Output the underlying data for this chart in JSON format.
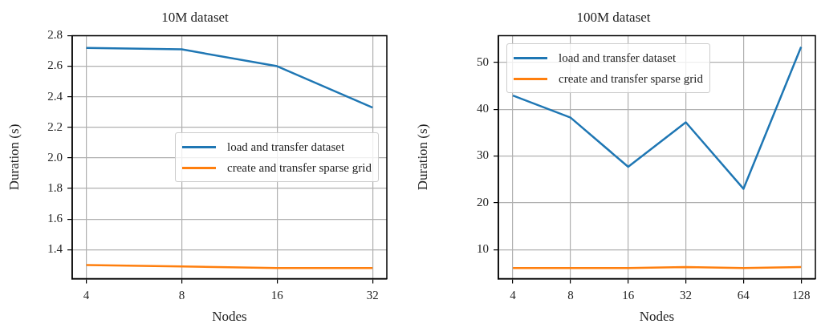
{
  "chart_data": [
    {
      "type": "line",
      "title": "10M dataset",
      "xlabel": "Nodes",
      "ylabel": "Duration (s)",
      "x": [
        4,
        8,
        16,
        32
      ],
      "log": "x",
      "xlim": [
        3.61,
        35.5
      ],
      "xticks": [
        4,
        8,
        16,
        32
      ],
      "ylim": [
        1.21,
        2.8
      ],
      "yticks": [
        1.4,
        1.6,
        1.8,
        {
          "value": 2,
          "label": "2.0"
        },
        2.2,
        2.4,
        2.6,
        2.8
      ],
      "grid": true,
      "legend": "right",
      "marker": "none",
      "line_style": "solid",
      "series": [
        {
          "name": "load and transfer dataset",
          "color": "#1f77b4",
          "values": [
            2.72,
            2.71,
            2.6,
            2.33
          ]
        },
        {
          "name": "create and transfer sparse grid",
          "color": "#ff7f0e",
          "values": [
            1.3,
            1.29,
            1.28,
            1.28
          ]
        }
      ]
    },
    {
      "type": "line",
      "title": "100M dataset",
      "xlabel": "Nodes",
      "ylabel": "Duration (s)",
      "x": [
        4,
        8,
        16,
        32,
        64,
        128
      ],
      "log": "x",
      "xlim": [
        3.36,
        152
      ],
      "xticks": [
        4,
        8,
        16,
        32,
        64,
        128
      ],
      "ylim": [
        3.8,
        55.7
      ],
      "yticks": [
        10,
        20,
        30,
        40,
        50
      ],
      "grid": true,
      "legend": "top left",
      "marker": "none",
      "line_style": "solid",
      "series": [
        {
          "name": "load and transfer dataset",
          "color": "#1f77b4",
          "values": [
            42.9,
            38.2,
            27.7,
            37.2,
            23.0,
            53.3
          ]
        },
        {
          "name": "create and transfer sparse grid",
          "color": "#ff7f0e",
          "values": [
            6.1,
            6.1,
            6.1,
            6.3,
            6.1,
            6.3
          ]
        }
      ]
    }
  ]
}
